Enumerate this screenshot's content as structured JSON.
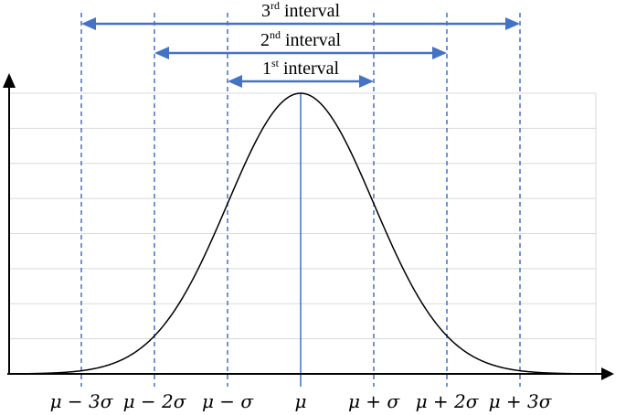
{
  "diagram": {
    "intervals": [
      {
        "num": "1",
        "sup": "st",
        "word": " interval",
        "from_sigma": -1,
        "to_sigma": 1
      },
      {
        "num": "2",
        "sup": "nd",
        "word": " interval",
        "from_sigma": -2,
        "to_sigma": 2
      },
      {
        "num": "3",
        "sup": "rd",
        "word": " interval",
        "from_sigma": -3,
        "to_sigma": 3
      }
    ],
    "tick_labels": [
      {
        "sigma": -3,
        "label": "μ − 3σ"
      },
      {
        "sigma": -2,
        "label": "μ − 2σ"
      },
      {
        "sigma": -1,
        "label": "μ − σ"
      },
      {
        "sigma": 0,
        "label": "μ"
      },
      {
        "sigma": 1,
        "label": "μ + σ"
      },
      {
        "sigma": 2,
        "label": "μ + 2σ"
      },
      {
        "sigma": 3,
        "label": "μ + 3σ"
      }
    ],
    "x_range_sigma": [
      -4,
      4
    ],
    "gridlines": 8,
    "colors": {
      "curve": "#000000",
      "axis": "#000000",
      "dashed_line": "#4472c4",
      "solid_line": "#4472c4",
      "interval_arrow": "#4472c4",
      "grid": "#d9d9d9",
      "plot_border": "#d9d9d9"
    }
  }
}
